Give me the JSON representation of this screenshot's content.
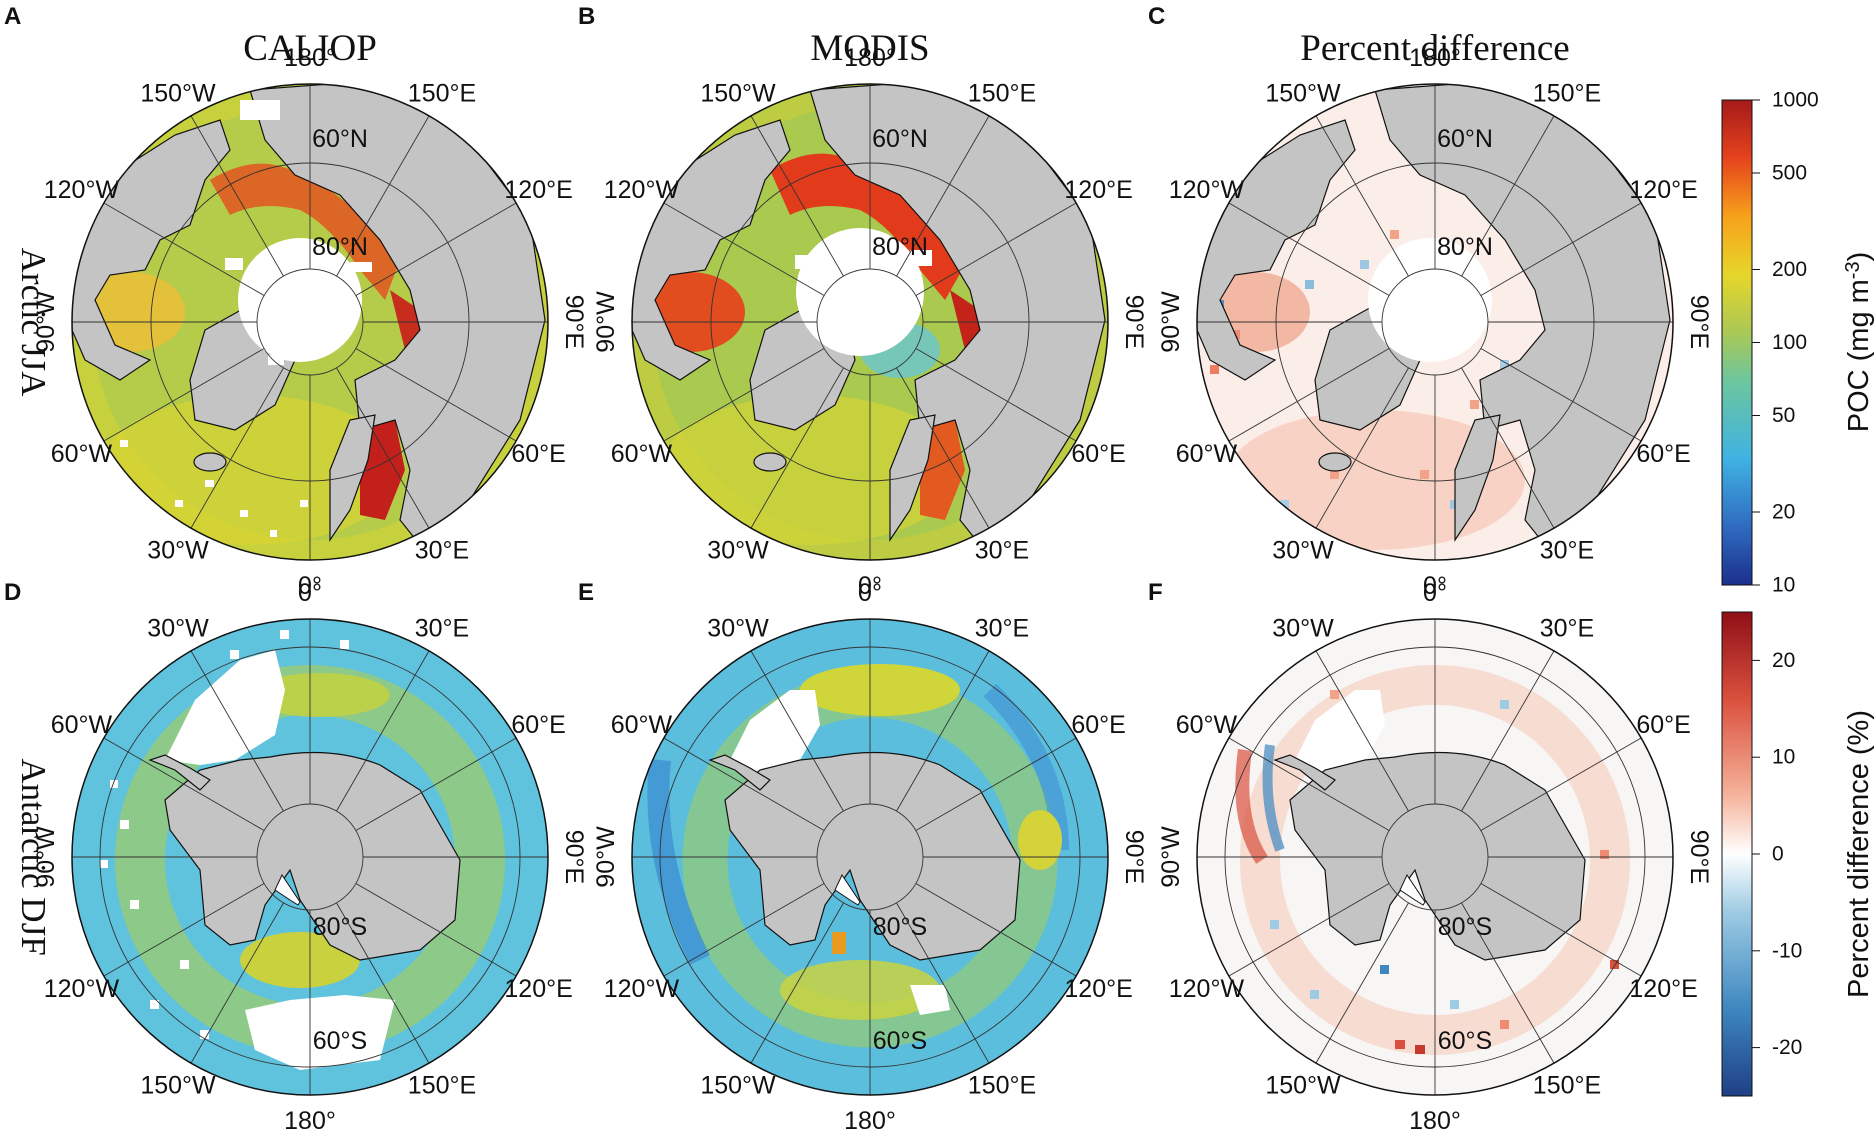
{
  "panel_letters": [
    "A",
    "B",
    "C",
    "D",
    "E",
    "F"
  ],
  "column_titles": [
    "CALIOP",
    "MODIS",
    "Percent difference"
  ],
  "row_titles": [
    "Arctic JJA",
    "Antarctic DJF"
  ],
  "arctic": {
    "lon_labels": [
      "180°",
      "150°E",
      "120°E",
      "90°E",
      "60°E",
      "30°E",
      "0°",
      "30°W",
      "60°W",
      "90°W",
      "120°W",
      "150°W"
    ],
    "lat_labels": [
      "60°N",
      "80°N"
    ]
  },
  "antarctic": {
    "lon_labels": [
      "0°",
      "30°E",
      "60°E",
      "90°E",
      "120°E",
      "150°E",
      "180°",
      "150°W",
      "120°W",
      "90°W",
      "60°W",
      "30°W"
    ],
    "lat_labels": [
      "80°S",
      "60°S"
    ]
  },
  "colorbar_poc": {
    "title": "POC (mg m",
    "title_sup": "-3",
    "title_end": ")",
    "scale": "log",
    "range": [
      10,
      1000
    ],
    "ticks": [
      "1000",
      "500",
      "200",
      "100",
      "50",
      "20",
      "10"
    ],
    "tick_values": [
      1000,
      500,
      200,
      100,
      50,
      20,
      10
    ]
  },
  "colorbar_diff": {
    "title": "Percent difference (%)",
    "scale": "linear",
    "range": [
      -25,
      25
    ],
    "ticks": [
      "20",
      "10",
      "0",
      "-10",
      "-20"
    ],
    "tick_values": [
      20,
      10,
      0,
      -10,
      -20
    ]
  },
  "colors": {
    "land": "#c4c4c4",
    "no_data": "#ffffff",
    "poc_scale": [
      "#1c2f8c",
      "#2f6bc0",
      "#3fb2e2",
      "#6cc69e",
      "#aac856",
      "#e6d62a",
      "#f7a11b",
      "#e5431d",
      "#a51a1a"
    ],
    "diff_scale": [
      "#1f3f85",
      "#3e87c0",
      "#9dcbe3",
      "#ffffff",
      "#f5b49c",
      "#d9503d",
      "#8f0f17"
    ]
  }
}
